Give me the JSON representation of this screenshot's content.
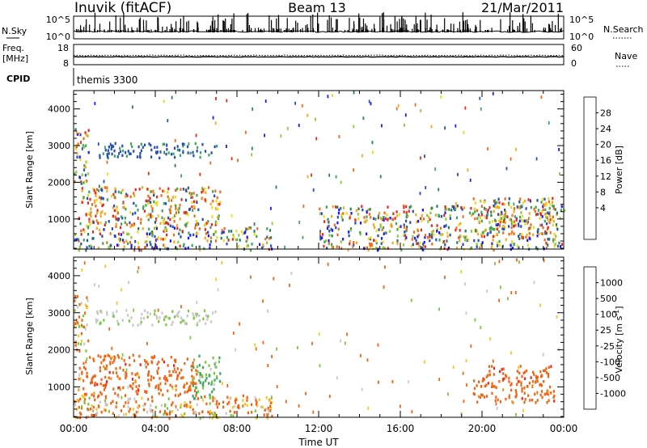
{
  "header": {
    "station": "Inuvik (fitACF)",
    "beam": "Beam 13",
    "date": "21/Mar/2011"
  },
  "top_panels": {
    "nsky": {
      "label": "N.Sky",
      "ticks": [
        "10^5",
        "10^0"
      ],
      "right_label": "N.Search",
      "right_ticks": [
        "10^5",
        "10^0"
      ]
    },
    "freq": {
      "label_line1": "Freq.",
      "label_line2": "[MHz]",
      "ticks": [
        "18",
        "8"
      ],
      "right_label": "Nave",
      "right_ticks": [
        "60",
        "0"
      ]
    },
    "cpid": {
      "label": "CPID",
      "value": "themis 3300"
    }
  },
  "chart_data": [
    {
      "type": "heatmap",
      "title": "",
      "parameter": "Power",
      "ylabel": "Slant Range [km]",
      "ylim": [
        180,
        4500
      ],
      "yticks": [
        "1000",
        "2000",
        "3000",
        "4000"
      ],
      "xlim_hours": [
        0,
        24
      ],
      "colorbar": {
        "label": "Power [dB]",
        "tick_labels": [
          "4",
          "8",
          "12",
          "16",
          "20",
          "24",
          "28"
        ],
        "colors": [
          "#1a1aff",
          "#2850b4",
          "#2a7a6a",
          "#3aa85a",
          "#8ccc32",
          "#e8dc1e",
          "#f5a81e",
          "#f06a1a",
          "#e8281e"
        ]
      },
      "echo_regions": [
        {
          "t_start": 0.0,
          "t_end": 0.7,
          "r_min": 2000,
          "r_max": 3500,
          "level": "mixed"
        },
        {
          "t_start": 1.0,
          "t_end": 7.0,
          "r_min": 2700,
          "r_max": 3100,
          "level": "low"
        },
        {
          "t_start": 0.2,
          "t_end": 7.2,
          "r_min": 800,
          "r_max": 1900,
          "level": "high"
        },
        {
          "t_start": 0.0,
          "t_end": 9.7,
          "r_min": 180,
          "r_max": 800,
          "level": "mixed"
        },
        {
          "t_start": 12.0,
          "t_end": 24.0,
          "r_min": 180,
          "r_max": 1400,
          "level": "mixed"
        },
        {
          "t_start": 19.5,
          "t_end": 23.5,
          "r_min": 600,
          "r_max": 1600,
          "level": "high"
        }
      ]
    },
    {
      "type": "heatmap",
      "title": "",
      "parameter": "Velocity",
      "ylabel": "Slant Range [km]",
      "ylim": [
        180,
        4500
      ],
      "yticks": [
        "1000",
        "2000",
        "3000",
        "4000"
      ],
      "xlim_hours": [
        0,
        24
      ],
      "colorbar": {
        "label": "Velocity [m s^-1]",
        "tick_labels": [
          "1000",
          "500",
          "100",
          "25",
          "-25",
          "-100",
          "-500",
          "-1000"
        ],
        "colors": [
          "#1a3ab4",
          "#2a7a6a",
          "#3aa85a",
          "#7ac83a",
          "#c8c8c8",
          "#f5c820",
          "#f0961e",
          "#f06414",
          "#e8281e"
        ]
      },
      "echo_regions": [
        {
          "t_start": 0.0,
          "t_end": 0.7,
          "r_min": 2000,
          "r_max": 3500,
          "level": "mixed"
        },
        {
          "t_start": 1.0,
          "t_end": 7.0,
          "r_min": 2700,
          "r_max": 3100,
          "level": "near-zero"
        },
        {
          "t_start": 0.2,
          "t_end": 6.0,
          "r_min": 800,
          "r_max": 1900,
          "level": "away"
        },
        {
          "t_start": 5.8,
          "t_end": 7.2,
          "r_min": 700,
          "r_max": 1900,
          "level": "toward"
        },
        {
          "t_start": 0.0,
          "t_end": 9.7,
          "r_min": 180,
          "r_max": 800,
          "level": "mixed"
        },
        {
          "t_start": 19.5,
          "t_end": 23.5,
          "r_min": 600,
          "r_max": 1600,
          "level": "away"
        }
      ]
    }
  ],
  "x_axis": {
    "label": "Time UT",
    "ticks": [
      "00:00",
      "04:00",
      "08:00",
      "12:00",
      "16:00",
      "20:00",
      "00:00"
    ]
  }
}
